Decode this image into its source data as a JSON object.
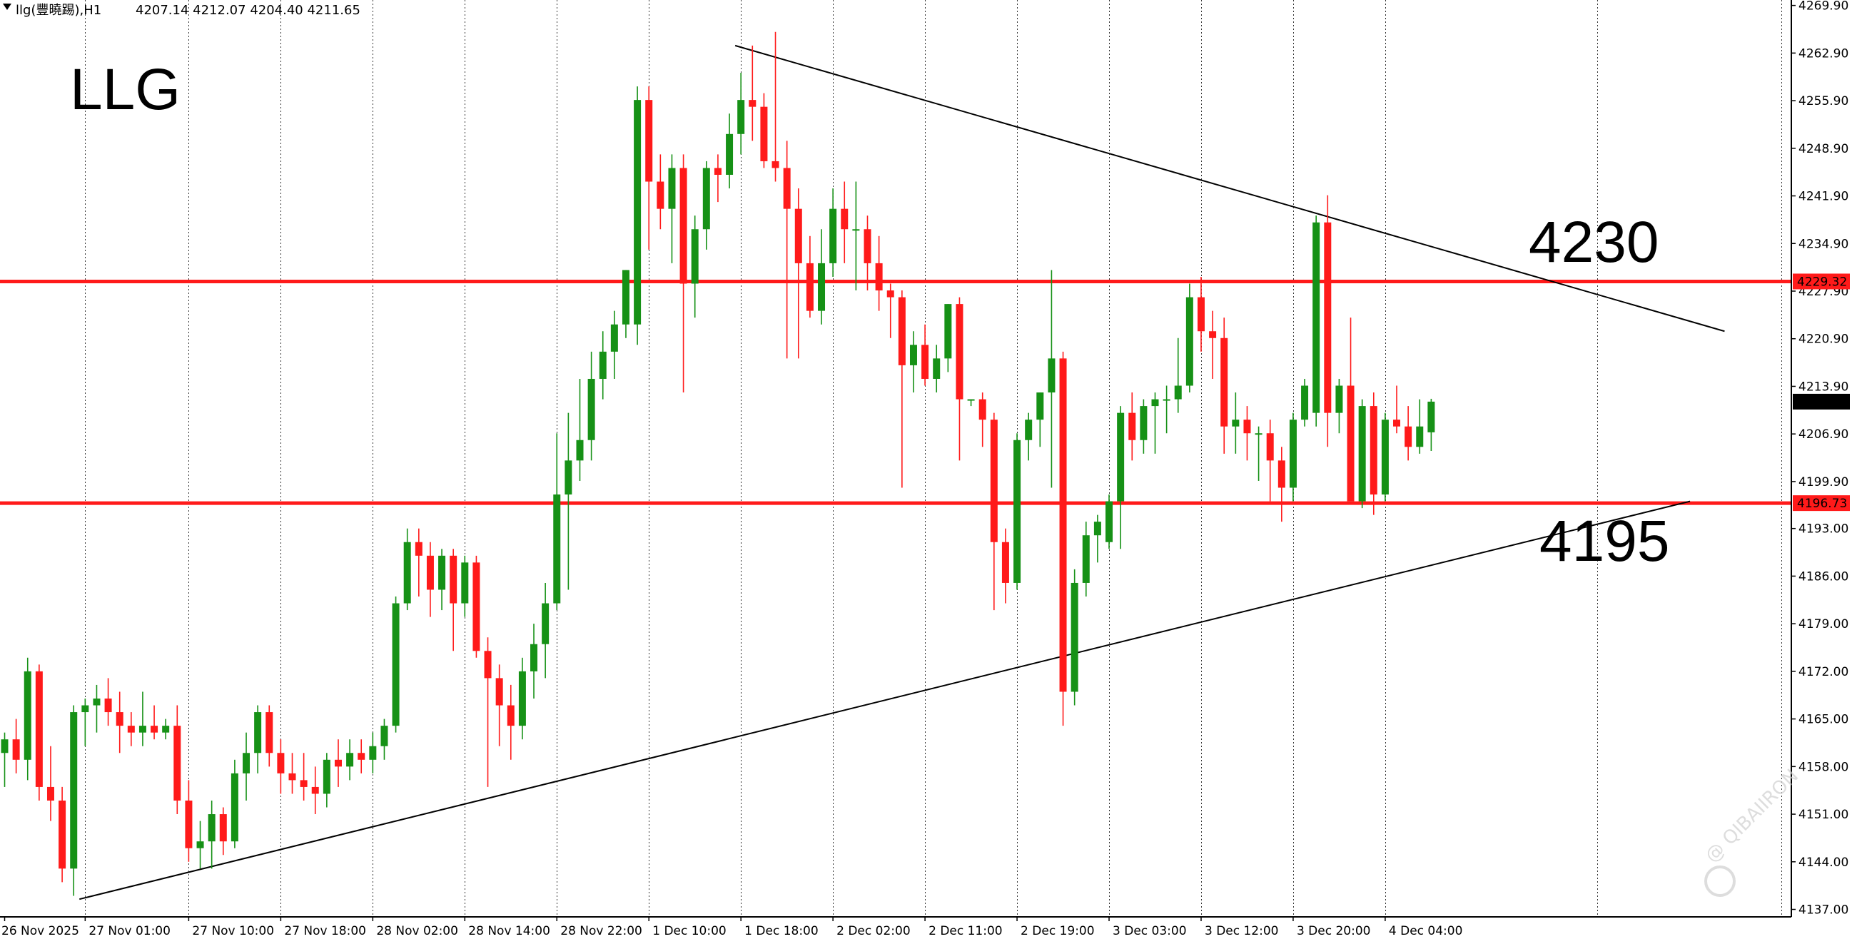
{
  "header": {
    "symbol": "llg(豐曉踢),H1",
    "ohlc": "4207.14 4212.07 4204.40 4211.65"
  },
  "chart_label": "LLG",
  "annotations": {
    "resistance_text": "4230",
    "support_text": "4195"
  },
  "watermark": "@ QIBAIIRON",
  "colors": {
    "bull": "#169116",
    "bear": "#ff1a1a",
    "level_line": "#ff1a1a",
    "trend_line": "#000000",
    "current_price_bg": "#000000"
  },
  "chart_data": {
    "type": "candlestick",
    "timeframe": "H1",
    "price_axis": {
      "ticks": [
        "4269.90",
        "4262.90",
        "4255.90",
        "4248.90",
        "4241.90",
        "4234.90",
        "4227.90",
        "4220.90",
        "4213.90",
        "4206.90",
        "4199.90",
        "4193.00",
        "4186.00",
        "4179.00",
        "4172.00",
        "4165.00",
        "4158.00",
        "4151.00",
        "4144.00",
        "4137.00"
      ],
      "range": [
        4135.9,
        4270.7
      ]
    },
    "time_axis": {
      "labels": [
        "26 Nov 2025",
        "27 Nov 01:00",
        "27 Nov 10:00",
        "27 Nov 18:00",
        "28 Nov 02:00",
        "28 Nov 14:00",
        "28 Nov 22:00",
        "1 Dec 10:00",
        "1 Dec 18:00",
        "2 Dec 02:00",
        "2 Dec 11:00",
        "2 Dec 19:00",
        "3 Dec 03:00",
        "3 Dec 12:00",
        "3 Dec 20:00",
        "4 Dec 04:00"
      ],
      "label_bar_index": [
        0,
        7,
        16,
        24,
        32,
        40,
        48,
        56,
        64,
        72,
        80,
        88,
        96,
        104,
        112,
        120
      ]
    },
    "levels": [
      {
        "price": 4229.32,
        "label": "4229.32"
      },
      {
        "price": 4196.73,
        "label": "4196.73"
      }
    ],
    "current_price": {
      "price": 4211.65,
      "label": "4211.65"
    },
    "trendlines": [
      {
        "name": "resistance",
        "from": {
          "bar": 63.5,
          "price": 4264.0
        },
        "to": {
          "bar": 149.5,
          "price": 4222.0
        }
      },
      {
        "name": "support",
        "from": {
          "bar": 6.5,
          "price": 4138.5
        },
        "to": {
          "bar": 146.5,
          "price": 4197.0
        }
      }
    ],
    "candles": [
      {
        "o": 4160.0,
        "h": 4163.0,
        "l": 4155.0,
        "c": 4162.0
      },
      {
        "o": 4162.0,
        "h": 4165.0,
        "l": 4157.0,
        "c": 4159.0
      },
      {
        "o": 4159.0,
        "h": 4174.0,
        "l": 4156.0,
        "c": 4172.0
      },
      {
        "o": 4172.0,
        "h": 4173.0,
        "l": 4153.0,
        "c": 4155.0
      },
      {
        "o": 4155.0,
        "h": 4161.0,
        "l": 4150.0,
        "c": 4153.0
      },
      {
        "o": 4153.0,
        "h": 4155.0,
        "l": 4141.0,
        "c": 4143.0
      },
      {
        "o": 4143.0,
        "h": 4167.0,
        "l": 4139.0,
        "c": 4166.0
      },
      {
        "o": 4166.0,
        "h": 4168.0,
        "l": 4161.0,
        "c": 4167.0
      },
      {
        "o": 4167.0,
        "h": 4170.0,
        "l": 4163.0,
        "c": 4168.0
      },
      {
        "o": 4168.0,
        "h": 4171.0,
        "l": 4164.0,
        "c": 4166.0
      },
      {
        "o": 4166.0,
        "h": 4169.0,
        "l": 4160.0,
        "c": 4164.0
      },
      {
        "o": 4164.0,
        "h": 4166.0,
        "l": 4161.0,
        "c": 4163.0
      },
      {
        "o": 4163.0,
        "h": 4169.0,
        "l": 4161.0,
        "c": 4164.0
      },
      {
        "o": 4164.0,
        "h": 4167.0,
        "l": 4162.0,
        "c": 4163.0
      },
      {
        "o": 4163.0,
        "h": 4165.0,
        "l": 4162.0,
        "c": 4164.0
      },
      {
        "o": 4164.0,
        "h": 4167.0,
        "l": 4151.0,
        "c": 4153.0
      },
      {
        "o": 4153.0,
        "h": 4156.0,
        "l": 4144.0,
        "c": 4146.0
      },
      {
        "o": 4146.0,
        "h": 4150.0,
        "l": 4143.0,
        "c": 4147.0
      },
      {
        "o": 4147.0,
        "h": 4153.0,
        "l": 4143.0,
        "c": 4151.0
      },
      {
        "o": 4151.0,
        "h": 4152.0,
        "l": 4145.0,
        "c": 4147.0
      },
      {
        "o": 4147.0,
        "h": 4159.0,
        "l": 4146.0,
        "c": 4157.0
      },
      {
        "o": 4157.0,
        "h": 4163.0,
        "l": 4153.0,
        "c": 4160.0
      },
      {
        "o": 4160.0,
        "h": 4167.0,
        "l": 4157.0,
        "c": 4166.0
      },
      {
        "o": 4166.0,
        "h": 4167.0,
        "l": 4158.0,
        "c": 4160.0
      },
      {
        "o": 4160.0,
        "h": 4162.0,
        "l": 4154.0,
        "c": 4157.0
      },
      {
        "o": 4157.0,
        "h": 4160.0,
        "l": 4154.0,
        "c": 4156.0
      },
      {
        "o": 4156.0,
        "h": 4160.0,
        "l": 4153.0,
        "c": 4155.0
      },
      {
        "o": 4155.0,
        "h": 4158.0,
        "l": 4151.0,
        "c": 4154.0
      },
      {
        "o": 4154.0,
        "h": 4160.0,
        "l": 4152.0,
        "c": 4159.0
      },
      {
        "o": 4159.0,
        "h": 4162.0,
        "l": 4155.0,
        "c": 4158.0
      },
      {
        "o": 4158.0,
        "h": 4162.0,
        "l": 4156.0,
        "c": 4160.0
      },
      {
        "o": 4160.0,
        "h": 4162.0,
        "l": 4157.0,
        "c": 4159.0
      },
      {
        "o": 4159.0,
        "h": 4163.0,
        "l": 4157.0,
        "c": 4161.0
      },
      {
        "o": 4161.0,
        "h": 4165.0,
        "l": 4159.0,
        "c": 4164.0
      },
      {
        "o": 4164.0,
        "h": 4183.0,
        "l": 4163.0,
        "c": 4182.0
      },
      {
        "o": 4182.0,
        "h": 4193.0,
        "l": 4181.0,
        "c": 4191.0
      },
      {
        "o": 4191.0,
        "h": 4193.0,
        "l": 4183.0,
        "c": 4189.0
      },
      {
        "o": 4189.0,
        "h": 4191.0,
        "l": 4180.0,
        "c": 4184.0
      },
      {
        "o": 4184.0,
        "h": 4190.0,
        "l": 4181.0,
        "c": 4189.0
      },
      {
        "o": 4189.0,
        "h": 4190.0,
        "l": 4175.0,
        "c": 4182.0
      },
      {
        "o": 4182.0,
        "h": 4189.0,
        "l": 4180.0,
        "c": 4188.0
      },
      {
        "o": 4188.0,
        "h": 4189.0,
        "l": 4174.0,
        "c": 4175.0
      },
      {
        "o": 4175.0,
        "h": 4177.0,
        "l": 4155.0,
        "c": 4171.0
      },
      {
        "o": 4171.0,
        "h": 4173.0,
        "l": 4161.0,
        "c": 4167.0
      },
      {
        "o": 4167.0,
        "h": 4170.0,
        "l": 4159.0,
        "c": 4164.0
      },
      {
        "o": 4164.0,
        "h": 4174.0,
        "l": 4162.0,
        "c": 4172.0
      },
      {
        "o": 4172.0,
        "h": 4179.0,
        "l": 4168.0,
        "c": 4176.0
      },
      {
        "o": 4176.0,
        "h": 4185.0,
        "l": 4171.0,
        "c": 4182.0
      },
      {
        "o": 4182.0,
        "h": 4207.0,
        "l": 4181.0,
        "c": 4198.0
      },
      {
        "o": 4198.0,
        "h": 4210.0,
        "l": 4184.0,
        "c": 4203.0
      },
      {
        "o": 4203.0,
        "h": 4215.0,
        "l": 4200.0,
        "c": 4206.0
      },
      {
        "o": 4206.0,
        "h": 4219.0,
        "l": 4203.0,
        "c": 4215.0
      },
      {
        "o": 4215.0,
        "h": 4222.0,
        "l": 4212.0,
        "c": 4219.0
      },
      {
        "o": 4219.0,
        "h": 4225.0,
        "l": 4215.0,
        "c": 4223.0
      },
      {
        "o": 4223.0,
        "h": 4231.0,
        "l": 4221.0,
        "c": 4231.0
      },
      {
        "o": 4223.0,
        "h": 4258.0,
        "l": 4220.0,
        "c": 4256.0
      },
      {
        "o": 4256.0,
        "h": 4258.0,
        "l": 4234.0,
        "c": 4244.0
      },
      {
        "o": 4244.0,
        "h": 4248.0,
        "l": 4237.0,
        "c": 4240.0
      },
      {
        "o": 4240.0,
        "h": 4248.0,
        "l": 4232.0,
        "c": 4246.0
      },
      {
        "o": 4246.0,
        "h": 4248.0,
        "l": 4213.0,
        "c": 4229.0
      },
      {
        "o": 4229.0,
        "h": 4239.0,
        "l": 4224.0,
        "c": 4237.0
      },
      {
        "o": 4237.0,
        "h": 4247.0,
        "l": 4234.0,
        "c": 4246.0
      },
      {
        "o": 4246.0,
        "h": 4248.0,
        "l": 4241.0,
        "c": 4245.0
      },
      {
        "o": 4245.0,
        "h": 4254.0,
        "l": 4243.0,
        "c": 4251.0
      },
      {
        "o": 4251.0,
        "h": 4260.0,
        "l": 4248.0,
        "c": 4256.0
      },
      {
        "o": 4256.0,
        "h": 4264.0,
        "l": 4250.0,
        "c": 4255.0
      },
      {
        "o": 4255.0,
        "h": 4257.0,
        "l": 4246.0,
        "c": 4247.0
      },
      {
        "o": 4247.0,
        "h": 4266.0,
        "l": 4244.0,
        "c": 4246.0
      },
      {
        "o": 4246.0,
        "h": 4250.0,
        "l": 4218.0,
        "c": 4240.0
      },
      {
        "o": 4240.0,
        "h": 4243.0,
        "l": 4218.0,
        "c": 4232.0
      },
      {
        "o": 4232.0,
        "h": 4236.0,
        "l": 4224.0,
        "c": 4225.0
      },
      {
        "o": 4225.0,
        "h": 4237.0,
        "l": 4223.0,
        "c": 4232.0
      },
      {
        "o": 4232.0,
        "h": 4243.0,
        "l": 4230.0,
        "c": 4240.0
      },
      {
        "o": 4240.0,
        "h": 4244.0,
        "l": 4232.0,
        "c": 4237.0
      },
      {
        "o": 4237.0,
        "h": 4244.0,
        "l": 4228.0,
        "c": 4237.0
      },
      {
        "o": 4237.0,
        "h": 4239.0,
        "l": 4228.0,
        "c": 4232.0
      },
      {
        "o": 4232.0,
        "h": 4236.0,
        "l": 4225.0,
        "c": 4228.0
      },
      {
        "o": 4228.0,
        "h": 4229.0,
        "l": 4221.0,
        "c": 4227.0
      },
      {
        "o": 4227.0,
        "h": 4228.0,
        "l": 4199.0,
        "c": 4217.0
      },
      {
        "o": 4217.0,
        "h": 4222.0,
        "l": 4213.0,
        "c": 4220.0
      },
      {
        "o": 4220.0,
        "h": 4223.0,
        "l": 4214.0,
        "c": 4215.0
      },
      {
        "o": 4215.0,
        "h": 4220.0,
        "l": 4213.0,
        "c": 4218.0
      },
      {
        "o": 4218.0,
        "h": 4226.0,
        "l": 4216.0,
        "c": 4226.0
      },
      {
        "o": 4226.0,
        "h": 4227.0,
        "l": 4203.0,
        "c": 4212.0
      },
      {
        "o": 4212.0,
        "h": 4212.0,
        "l": 4211.0,
        "c": 4212.0
      },
      {
        "o": 4212.0,
        "h": 4213.0,
        "l": 4205.0,
        "c": 4209.0
      },
      {
        "o": 4209.0,
        "h": 4210.0,
        "l": 4181.0,
        "c": 4191.0
      },
      {
        "o": 4191.0,
        "h": 4193.0,
        "l": 4182.0,
        "c": 4185.0
      },
      {
        "o": 4185.0,
        "h": 4207.0,
        "l": 4184.0,
        "c": 4206.0
      },
      {
        "o": 4206.0,
        "h": 4210.0,
        "l": 4203.0,
        "c": 4209.0
      },
      {
        "o": 4209.0,
        "h": 4213.0,
        "l": 4205.0,
        "c": 4213.0
      },
      {
        "o": 4213.0,
        "h": 4231.0,
        "l": 4199.0,
        "c": 4218.0
      },
      {
        "o": 4218.0,
        "h": 4219.0,
        "l": 4164.0,
        "c": 4169.0
      },
      {
        "o": 4169.0,
        "h": 4187.0,
        "l": 4167.0,
        "c": 4185.0
      },
      {
        "o": 4185.0,
        "h": 4194.0,
        "l": 4183.0,
        "c": 4192.0
      },
      {
        "o": 4192.0,
        "h": 4195.0,
        "l": 4188.0,
        "c": 4194.0
      },
      {
        "o": 4191.0,
        "h": 4198.0,
        "l": 4190.0,
        "c": 4197.0
      },
      {
        "o": 4197.0,
        "h": 4211.0,
        "l": 4190.0,
        "c": 4210.0
      },
      {
        "o": 4210.0,
        "h": 4213.0,
        "l": 4203.0,
        "c": 4206.0
      },
      {
        "o": 4206.0,
        "h": 4212.0,
        "l": 4204.0,
        "c": 4211.0
      },
      {
        "o": 4211.0,
        "h": 4213.0,
        "l": 4204.0,
        "c": 4212.0
      },
      {
        "o": 4212.0,
        "h": 4214.0,
        "l": 4207.0,
        "c": 4212.0
      },
      {
        "o": 4212.0,
        "h": 4221.0,
        "l": 4210.0,
        "c": 4214.0
      },
      {
        "o": 4214.0,
        "h": 4229.0,
        "l": 4213.0,
        "c": 4227.0
      },
      {
        "o": 4227.0,
        "h": 4230.0,
        "l": 4219.0,
        "c": 4222.0
      },
      {
        "o": 4222.0,
        "h": 4225.0,
        "l": 4215.0,
        "c": 4221.0
      },
      {
        "o": 4221.0,
        "h": 4224.0,
        "l": 4204.0,
        "c": 4208.0
      },
      {
        "o": 4208.0,
        "h": 4213.0,
        "l": 4204.0,
        "c": 4209.0
      },
      {
        "o": 4209.0,
        "h": 4211.0,
        "l": 4203.0,
        "c": 4207.0
      },
      {
        "o": 4207.0,
        "h": 4208.0,
        "l": 4200.0,
        "c": 4207.0
      },
      {
        "o": 4207.0,
        "h": 4209.0,
        "l": 4197.0,
        "c": 4203.0
      },
      {
        "o": 4203.0,
        "h": 4205.0,
        "l": 4194.0,
        "c": 4199.0
      },
      {
        "o": 4199.0,
        "h": 4210.0,
        "l": 4197.0,
        "c": 4209.0
      },
      {
        "o": 4209.0,
        "h": 4215.0,
        "l": 4208.0,
        "c": 4214.0
      },
      {
        "o": 4210.0,
        "h": 4239.0,
        "l": 4208.0,
        "c": 4238.0
      },
      {
        "o": 4238.0,
        "h": 4242.0,
        "l": 4205.0,
        "c": 4210.0
      },
      {
        "o": 4210.0,
        "h": 4215.0,
        "l": 4207.0,
        "c": 4214.0
      },
      {
        "o": 4214.0,
        "h": 4224.0,
        "l": 4197.0,
        "c": 4197.0
      },
      {
        "o": 4197.0,
        "h": 4212.0,
        "l": 4196.0,
        "c": 4211.0
      },
      {
        "o": 4211.0,
        "h": 4213.0,
        "l": 4195.0,
        "c": 4198.0
      },
      {
        "o": 4198.0,
        "h": 4210.0,
        "l": 4197.0,
        "c": 4209.0
      },
      {
        "o": 4209.0,
        "h": 4214.0,
        "l": 4207.0,
        "c": 4208.0
      },
      {
        "o": 4208.0,
        "h": 4211.0,
        "l": 4203.0,
        "c": 4205.0
      },
      {
        "o": 4205.0,
        "h": 4212.0,
        "l": 4204.0,
        "c": 4208.0
      },
      {
        "o": 4207.14,
        "h": 4212.07,
        "l": 4204.4,
        "c": 4211.65
      }
    ]
  }
}
